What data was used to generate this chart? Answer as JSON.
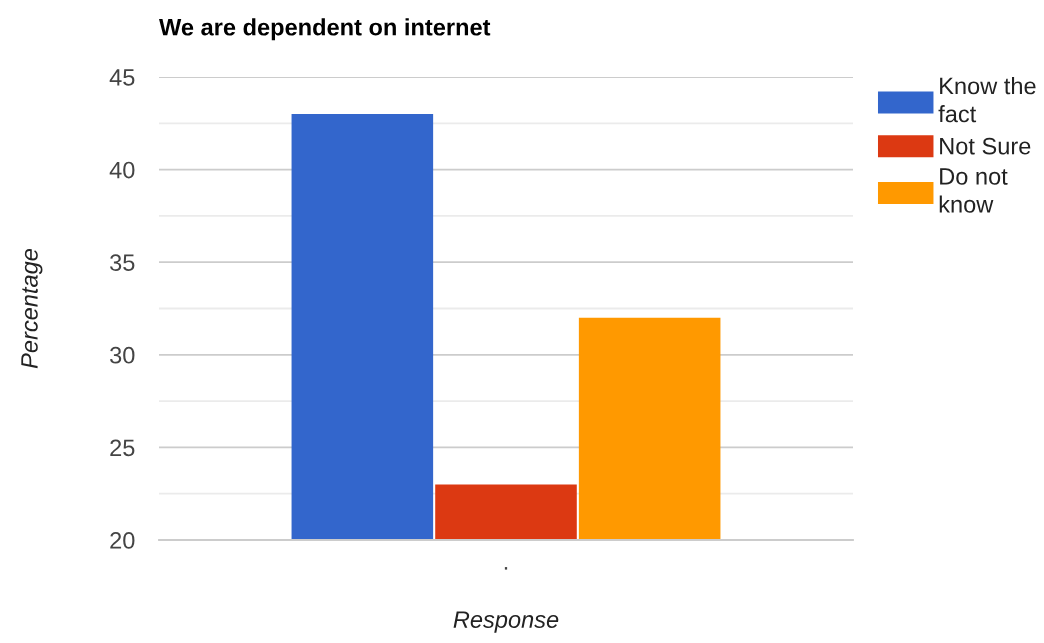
{
  "chart_data": {
    "type": "bar",
    "title": "We are dependent on internet",
    "xlabel": "Response",
    "ylabel": "Percentage",
    "categories": [
      "."
    ],
    "series": [
      {
        "name": "Know the fact",
        "color": "#3366cc",
        "values": [
          43
        ]
      },
      {
        "name": "Not Sure",
        "color": "#dc3912",
        "values": [
          23
        ]
      },
      {
        "name": "Do not know",
        "color": "#ff9900",
        "values": [
          32
        ]
      }
    ],
    "ylim": [
      20,
      45
    ],
    "yticks": [
      20,
      {
        "value": 22.5,
        "label": null
      },
      25,
      {
        "value": 27.5,
        "label": null
      },
      30,
      {
        "value": 32.5,
        "label": null
      },
      35,
      {
        "value": 37.5,
        "label": null
      },
      40,
      {
        "value": 42.5,
        "label": null
      },
      45
    ],
    "grid": "y",
    "legend": "right"
  }
}
